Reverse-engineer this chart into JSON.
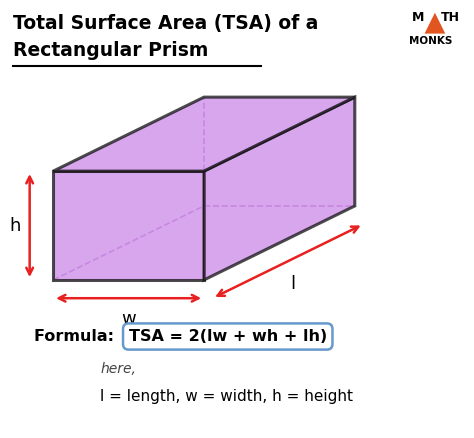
{
  "title_line1": "Total Surface Area (TSA) of a",
  "title_line2": "Rectangular Prism",
  "bg_color": "#ffffff",
  "prism_fill_color": "#cc88e8",
  "prism_fill_alpha": 0.75,
  "prism_edge_color": "#111111",
  "prism_edge_width": 2.2,
  "prism_inner_line_color": "#bb88cc",
  "arrow_color": "#e82020",
  "label_h": "h",
  "label_w": "w",
  "label_l": "l",
  "formula_prefix": "Formula: ",
  "formula_box": "TSA = 2(lw + wh + lh)",
  "formula_box_color": "#ffffff",
  "formula_box_border": "#6699cc",
  "formula_note": "here,",
  "formula_vars": "l = length, w = width, h = height",
  "logo_triangle_color": "#e05520"
}
